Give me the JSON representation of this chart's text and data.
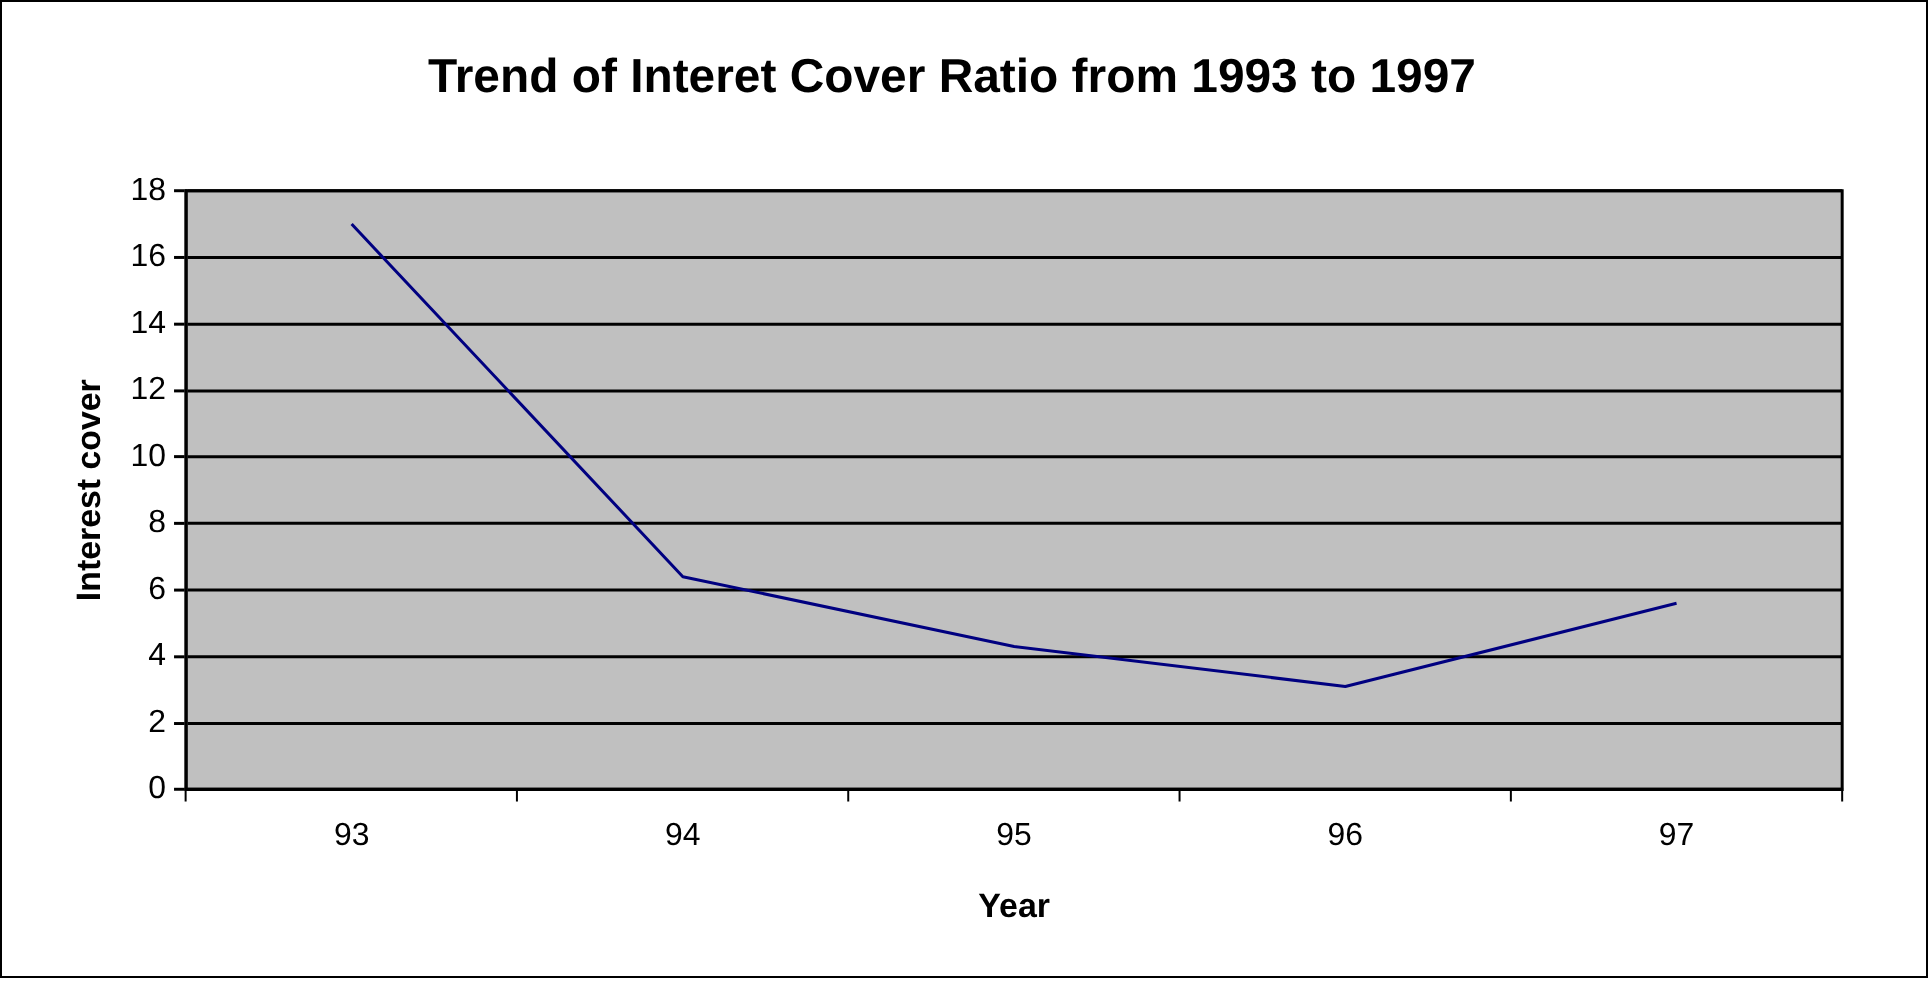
{
  "chart_data": {
    "type": "line",
    "title": "Trend of Interet Cover Ratio from 1993 to 1997",
    "xlabel": "Year",
    "ylabel": "Interest cover",
    "categories": [
      "93",
      "94",
      "95",
      "96",
      "97"
    ],
    "series": [
      {
        "color": "#000080",
        "values": [
          17,
          6.4,
          4.3,
          3.1,
          5.6
        ]
      }
    ],
    "ylim": [
      0,
      18
    ],
    "yticks": [
      0,
      2,
      4,
      6,
      8,
      10,
      12,
      14,
      16,
      18
    ],
    "grid": "y",
    "legend": false,
    "marker": "none",
    "line_style": "solid"
  }
}
